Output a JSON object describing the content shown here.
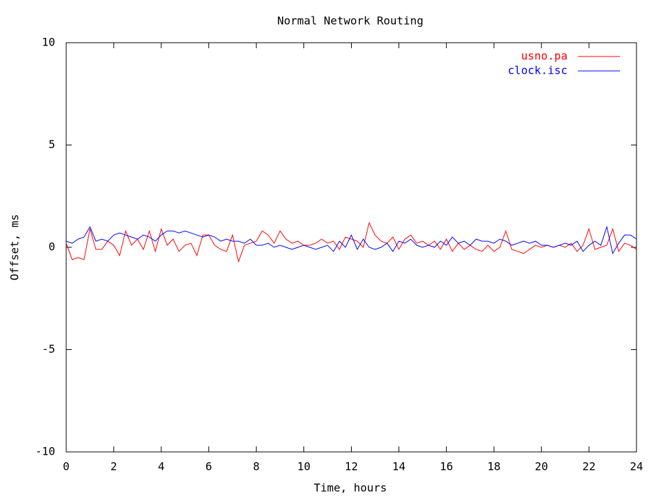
{
  "chart_data": {
    "type": "line",
    "title": "Normal Network Routing",
    "x_label": "Time, hours",
    "y_label": "Offset, ms",
    "x": [
      0,
      0.25,
      0.5,
      0.75,
      1,
      1.25,
      1.5,
      1.75,
      2,
      2.25,
      2.5,
      2.75,
      3,
      3.25,
      3.5,
      3.75,
      4,
      4.25,
      4.5,
      4.75,
      5,
      5.25,
      5.5,
      5.75,
      6,
      6.25,
      6.5,
      6.75,
      7,
      7.25,
      7.5,
      7.75,
      8,
      8.25,
      8.5,
      8.75,
      9,
      9.25,
      9.5,
      9.75,
      10,
      10.25,
      10.5,
      10.75,
      11,
      11.25,
      11.5,
      11.75,
      12,
      12.25,
      12.5,
      12.75,
      13,
      13.25,
      13.5,
      13.75,
      14,
      14.25,
      14.5,
      14.75,
      15,
      15.25,
      15.5,
      15.75,
      16,
      16.25,
      16.5,
      16.75,
      17,
      17.25,
      17.5,
      17.75,
      18,
      18.25,
      18.5,
      18.75,
      19,
      19.25,
      19.5,
      19.75,
      20,
      20.25,
      20.5,
      20.75,
      21,
      21.25,
      21.5,
      21.75,
      22,
      22.25,
      22.5,
      22.75,
      23,
      23.25,
      23.5,
      23.75,
      24
    ],
    "series": [
      {
        "name": "usno.pa",
        "color": "#ff0000",
        "values": [
          0.2,
          -0.6,
          -0.5,
          -0.6,
          0.9,
          -0.1,
          -0.1,
          0.3,
          0.1,
          -0.4,
          0.8,
          0.1,
          0.4,
          -0.1,
          0.8,
          -0.2,
          0.9,
          0.1,
          0.4,
          -0.2,
          0.1,
          0.2,
          -0.4,
          0.6,
          0.6,
          0.1,
          -0.1,
          -0.2,
          0.6,
          -0.7,
          0.1,
          0.2,
          0.3,
          0.8,
          0.6,
          0.2,
          0.8,
          0.4,
          0.2,
          0.3,
          0.1,
          0.1,
          0.2,
          0.4,
          0.2,
          0.3,
          -0.1,
          0.5,
          0.4,
          0.3,
          0.0,
          1.2,
          0.6,
          0.3,
          0.2,
          0.5,
          -0.1,
          0.4,
          0.6,
          0.2,
          0.3,
          0.1,
          0.3,
          -0.1,
          0.4,
          -0.2,
          0.2,
          -0.1,
          0.1,
          -0.1,
          -0.2,
          0.1,
          -0.2,
          0.0,
          0.8,
          -0.1,
          -0.2,
          -0.3,
          -0.1,
          0.1,
          0.0,
          0.1,
          0.0,
          0.1,
          0.0,
          0.2,
          -0.2,
          0.1,
          0.9,
          -0.1,
          0.0,
          0.1,
          0.9,
          -0.2,
          0.2,
          0.1,
          -0.1
        ]
      },
      {
        "name": "clock.isc",
        "color": "#0000ff",
        "values": [
          0.3,
          0.2,
          0.4,
          0.5,
          1.0,
          0.3,
          0.4,
          0.3,
          0.6,
          0.7,
          0.6,
          0.5,
          0.4,
          0.6,
          0.5,
          0.3,
          0.6,
          0.8,
          0.8,
          0.7,
          0.8,
          0.7,
          0.6,
          0.5,
          0.6,
          0.5,
          0.3,
          0.4,
          0.3,
          0.3,
          0.2,
          0.4,
          0.1,
          0.1,
          0.2,
          0.0,
          0.1,
          0.0,
          -0.1,
          0.0,
          0.1,
          0.0,
          -0.1,
          0.0,
          0.1,
          -0.2,
          0.3,
          0.0,
          0.6,
          -0.1,
          0.4,
          0.0,
          -0.1,
          0.0,
          0.2,
          -0.2,
          0.3,
          0.2,
          0.4,
          0.1,
          0.0,
          0.1,
          0.0,
          0.3,
          0.1,
          0.5,
          0.2,
          0.3,
          0.1,
          0.4,
          0.3,
          0.3,
          0.2,
          0.4,
          0.3,
          0.1,
          0.2,
          0.3,
          0.2,
          0.3,
          0.1,
          0.1,
          0.0,
          0.1,
          0.2,
          0.1,
          0.3,
          -0.2,
          0.1,
          0.3,
          0.1,
          1.0,
          -0.3,
          0.2,
          0.6,
          0.6,
          0.4
        ]
      }
    ],
    "xlim": [
      0,
      24
    ],
    "xticks": [
      0,
      2,
      4,
      6,
      8,
      10,
      12,
      14,
      16,
      18,
      20,
      22,
      24
    ],
    "ylim": [
      -10,
      10
    ],
    "yticks": [
      -10,
      -5,
      0,
      5,
      10
    ],
    "legend": "top-right"
  }
}
